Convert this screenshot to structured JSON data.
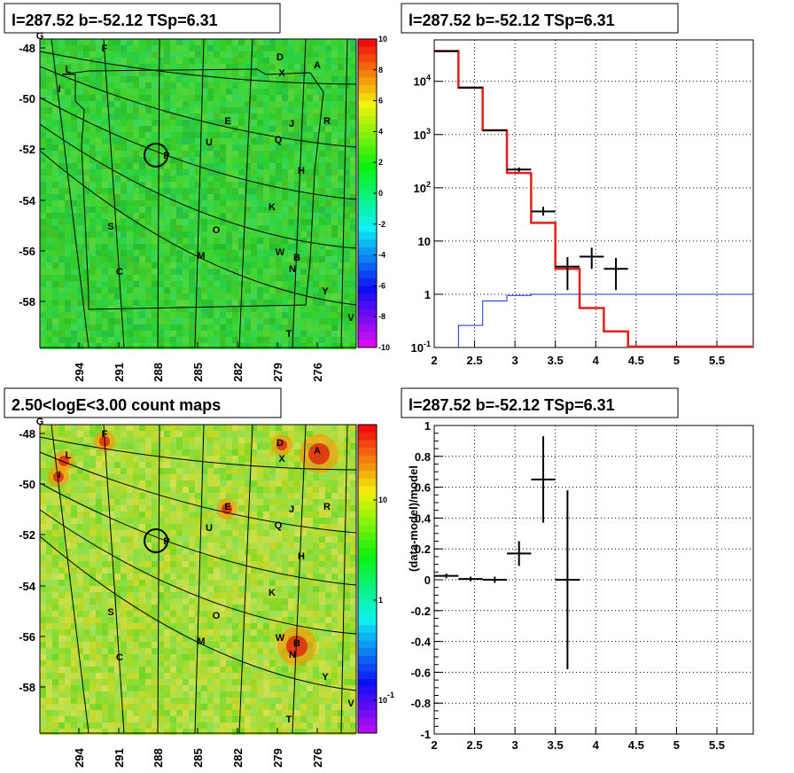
{
  "colors": {
    "map_bg": "#2fd53a",
    "count_bg": "#b6e034",
    "model": "#e0201a",
    "aux": "#1133cc",
    "data": "#000000"
  },
  "chart_data": [
    {
      "type": "heatmap",
      "title": "l=287.52 b=-52.12 TSp=6.31",
      "x_ticks": [
        "294",
        "291",
        "288",
        "285",
        "282",
        "279",
        "276"
      ],
      "y_ticks": [
        "-48",
        "-50",
        "-52",
        "-54",
        "-56",
        "-58"
      ],
      "colorbar_ticks": [
        "10",
        "8",
        "6",
        "4",
        "2",
        "0",
        "-2",
        "-4",
        "-6",
        "-8",
        "-10"
      ],
      "colorbar_range": [
        -10,
        10
      ],
      "sources": [
        "G",
        "F",
        "L",
        "I",
        "D",
        "X",
        "A",
        "E",
        "J",
        "R",
        "U",
        "Q",
        "P",
        "H",
        "K",
        "S",
        "O",
        "W",
        "M",
        "B",
        "N",
        "C",
        "Y",
        "V",
        "T"
      ]
    },
    {
      "type": "line",
      "title": "l=287.52 b=-52.12 TSp=6.31",
      "log_y": true,
      "xlim": [
        2,
        5.95
      ],
      "ylim": [
        0.1,
        60000
      ],
      "x_ticks": [
        "2",
        "2.5",
        "3",
        "3.5",
        "4",
        "4.5",
        "5",
        "5.5"
      ],
      "y_ticks": [
        "10^-1",
        "1",
        "10",
        "10^2",
        "10^3",
        "10^4"
      ],
      "grid": true,
      "model_steps": [
        {
          "x0": 2.0,
          "x1": 2.3,
          "y": 37000
        },
        {
          "x0": 2.3,
          "x1": 2.6,
          "y": 7600
        },
        {
          "x0": 2.6,
          "x1": 2.9,
          "y": 1200
        },
        {
          "x0": 2.9,
          "x1": 3.2,
          "y": 190
        },
        {
          "x0": 3.2,
          "x1": 3.5,
          "y": 22
        },
        {
          "x0": 3.5,
          "x1": 3.8,
          "y": 3.0
        },
        {
          "x0": 3.8,
          "x1": 4.1,
          "y": 0.55
        },
        {
          "x0": 4.1,
          "x1": 4.4,
          "y": 0.2
        },
        {
          "x0": 4.4,
          "x1": 5.95,
          "y": 0.1
        }
      ],
      "aux_steps": [
        {
          "x0": 2.3,
          "x1": 2.6,
          "y": 0.26
        },
        {
          "x0": 2.6,
          "x1": 2.9,
          "y": 0.75
        },
        {
          "x0": 2.9,
          "x1": 3.2,
          "y": 0.95
        },
        {
          "x0": 3.2,
          "x1": 5.95,
          "y": 1.0
        }
      ],
      "points": [
        {
          "x": 2.15,
          "y": 37000,
          "xerr": 0.15,
          "ylo": 36500,
          "yhi": 37500
        },
        {
          "x": 2.45,
          "y": 7600,
          "xerr": 0.15,
          "ylo": 7500,
          "yhi": 7700
        },
        {
          "x": 2.75,
          "y": 1200,
          "xerr": 0.15,
          "ylo": 1180,
          "yhi": 1220
        },
        {
          "x": 3.05,
          "y": 220,
          "xerr": 0.15,
          "ylo": 200,
          "yhi": 240
        },
        {
          "x": 3.35,
          "y": 36,
          "xerr": 0.15,
          "ylo": 30,
          "yhi": 44
        },
        {
          "x": 3.65,
          "y": 3.3,
          "xerr": 0.15,
          "ylo": 1.2,
          "yhi": 5.0
        },
        {
          "x": 3.95,
          "y": 5.1,
          "xerr": 0.15,
          "ylo": 3.0,
          "yhi": 7.5
        },
        {
          "x": 4.25,
          "y": 3.0,
          "xerr": 0.15,
          "ylo": 1.2,
          "yhi": 4.8
        }
      ]
    },
    {
      "type": "heatmap",
      "title": "2.50<logE<3.00 count maps",
      "x_ticks": [
        "294",
        "291",
        "288",
        "285",
        "282",
        "279",
        "276"
      ],
      "y_ticks": [
        "-48",
        "-50",
        "-52",
        "-54",
        "-56",
        "-58"
      ],
      "colorbar_ticks": [
        "10",
        "1",
        "10^-1"
      ],
      "colorbar_log": true,
      "sources": [
        "G",
        "F",
        "L",
        "I",
        "D",
        "X",
        "A",
        "E",
        "J",
        "R",
        "U",
        "Q",
        "P",
        "H",
        "K",
        "S",
        "O",
        "W",
        "M",
        "B",
        "N",
        "C",
        "Y",
        "V",
        "T"
      ]
    },
    {
      "type": "scatter",
      "title": "l=287.52 b=-52.12 TSp=6.31",
      "ylabel": "(data-model)/model",
      "xlim": [
        2,
        5.95
      ],
      "ylim": [
        -1,
        1
      ],
      "x_ticks": [
        "2",
        "2.5",
        "3",
        "3.5",
        "4",
        "4.5",
        "5",
        "5.5"
      ],
      "y_ticks": [
        "1",
        "0.8",
        "0.6",
        "0.4",
        "0.2",
        "0",
        "-0.2",
        "-0.4",
        "-0.6",
        "-0.8",
        "-1"
      ],
      "grid": true,
      "points": [
        {
          "x": 2.15,
          "y": 0.025,
          "xerr": 0.15,
          "err": 0.015
        },
        {
          "x": 2.45,
          "y": 0.005,
          "xerr": 0.15,
          "err": 0.015
        },
        {
          "x": 2.75,
          "y": 0.0,
          "xerr": 0.15,
          "err": 0.02
        },
        {
          "x": 3.05,
          "y": 0.17,
          "xerr": 0.15,
          "err": 0.08
        },
        {
          "x": 3.35,
          "y": 0.65,
          "xerr": 0.15,
          "err": 0.28
        },
        {
          "x": 3.65,
          "y": 0.0,
          "xerr": 0.15,
          "err": 0.58
        }
      ]
    }
  ]
}
